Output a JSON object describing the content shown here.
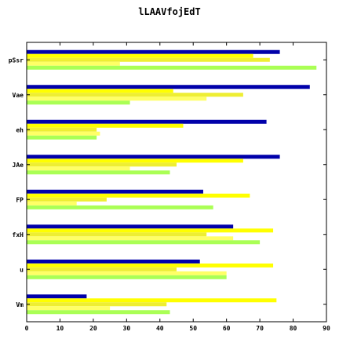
{
  "chart_data": {
    "type": "bar",
    "orientation": "horizontal",
    "title": "lLAAVfojEdT",
    "xlabel": "",
    "ylabel": "",
    "xlim": [
      0,
      90
    ],
    "xticks": [
      0,
      10,
      20,
      30,
      40,
      50,
      60,
      70,
      80,
      90
    ],
    "grid": false,
    "legend": "none",
    "categories": [
      "pSsr",
      "Vae",
      "eh",
      "JAe",
      "FP",
      "fxH",
      "u",
      "Vm"
    ],
    "series": [
      {
        "color": "#0000aa",
        "values": [
          76,
          85,
          72,
          76,
          53,
          62,
          52,
          18
        ]
      },
      {
        "color": "#ffff00",
        "values": [
          68,
          44,
          47,
          65,
          67,
          74,
          74,
          75
        ]
      },
      {
        "color": "#eeee33",
        "values": [
          73,
          65,
          21,
          45,
          24,
          54,
          45,
          42
        ]
      },
      {
        "color": "#ffff66",
        "values": [
          28,
          54,
          22,
          31,
          15,
          62,
          60,
          25
        ]
      },
      {
        "color": "#aaff55",
        "values": [
          87,
          31,
          21,
          43,
          56,
          70,
          60,
          43
        ]
      }
    ]
  }
}
